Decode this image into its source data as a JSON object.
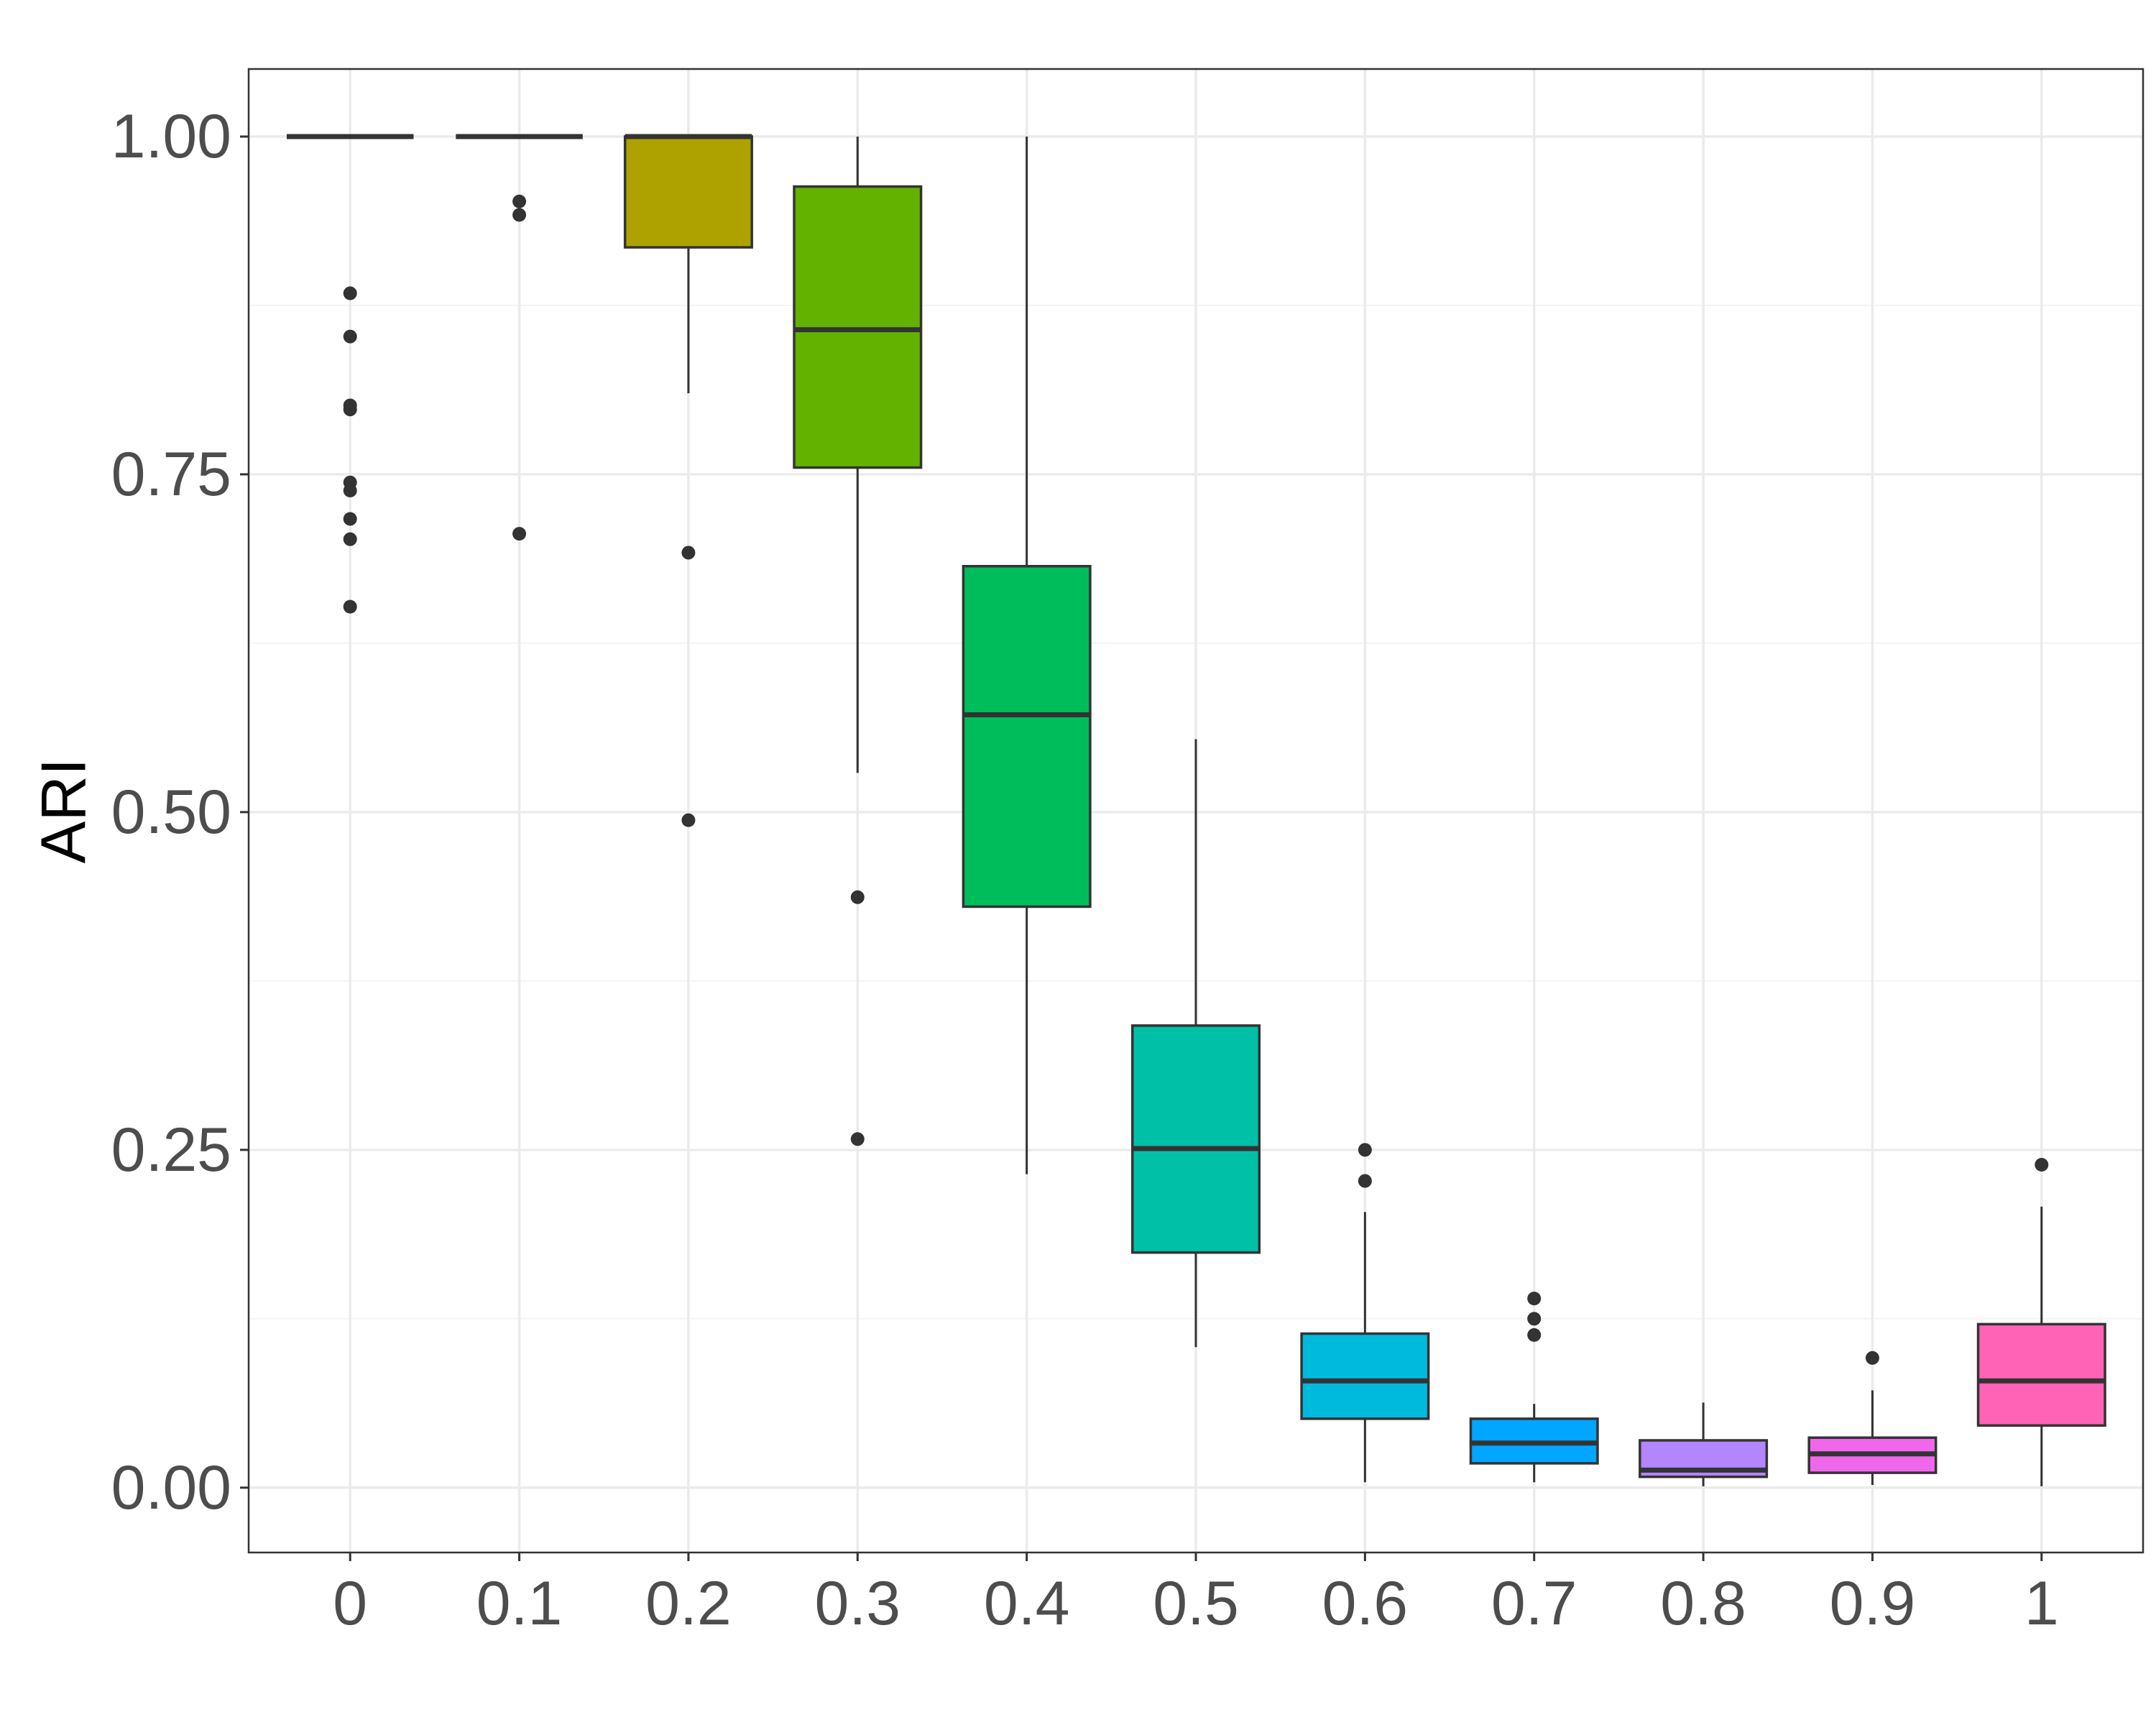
{
  "chart_data": {
    "type": "box",
    "title": "",
    "xlabel": "",
    "ylabel": "ARI",
    "categories": [
      "0",
      "0.1",
      "0.2",
      "0.3",
      "0.4",
      "0.5",
      "0.6",
      "0.7",
      "0.8",
      "0.9",
      "1"
    ],
    "ylim": [
      -0.048,
      1.05
    ],
    "yticks": [
      "0.00",
      "0.25",
      "0.50",
      "0.75",
      "1.00"
    ],
    "ytick_values": [
      0,
      0.25,
      0.5,
      0.75,
      1.0
    ],
    "grid": true,
    "boxes": [
      {
        "category": "0",
        "color": "#F8766D",
        "min": 1.0,
        "q1": 1.0,
        "median": 1.0,
        "q3": 1.0,
        "max": 1.0,
        "outliers": [
          0.884,
          0.852,
          0.801,
          0.798,
          0.744,
          0.738,
          0.717,
          0.702,
          0.652
        ]
      },
      {
        "category": "0.1",
        "color": "#DB8E00",
        "min": 1.0,
        "q1": 1.0,
        "median": 1.0,
        "q3": 1.0,
        "max": 1.0,
        "outliers": [
          0.952,
          0.942,
          0.706
        ]
      },
      {
        "category": "0.2",
        "color": "#AEA200",
        "min": 0.81,
        "q1": 0.918,
        "median": 1.0,
        "q3": 1.0,
        "max": 1.0,
        "outliers": [
          0.692,
          0.494
        ]
      },
      {
        "category": "0.3",
        "color": "#64B200",
        "min": 0.529,
        "q1": 0.755,
        "median": 0.857,
        "q3": 0.963,
        "max": 1.0,
        "outliers": [
          0.437,
          0.258
        ]
      },
      {
        "category": "0.4",
        "color": "#00BD5C",
        "min": 0.232,
        "q1": 0.43,
        "median": 0.572,
        "q3": 0.682,
        "max": 1.0,
        "outliers": []
      },
      {
        "category": "0.5",
        "color": "#00C1A7",
        "min": 0.104,
        "q1": 0.174,
        "median": 0.251,
        "q3": 0.342,
        "max": 0.554,
        "outliers": []
      },
      {
        "category": "0.6",
        "color": "#00BADE",
        "min": 0.004,
        "q1": 0.051,
        "median": 0.079,
        "q3": 0.114,
        "max": 0.204,
        "outliers": [
          0.25,
          0.227
        ]
      },
      {
        "category": "0.7",
        "color": "#00A6FF",
        "min": 0.004,
        "q1": 0.018,
        "median": 0.033,
        "q3": 0.051,
        "max": 0.062,
        "outliers": [
          0.14,
          0.125,
          0.113
        ]
      },
      {
        "category": "0.8",
        "color": "#B385FF",
        "min": 0.001,
        "q1": 0.008,
        "median": 0.013,
        "q3": 0.035,
        "max": 0.063,
        "outliers": []
      },
      {
        "category": "0.9",
        "color": "#EF67EB",
        "min": 0.002,
        "q1": 0.011,
        "median": 0.025,
        "q3": 0.037,
        "max": 0.072,
        "outliers": [
          0.096
        ]
      },
      {
        "category": "1",
        "color": "#FF63B6",
        "min": 0.001,
        "q1": 0.046,
        "median": 0.079,
        "q3": 0.121,
        "max": 0.208,
        "outliers": [
          0.239
        ]
      }
    ]
  },
  "style": {
    "panel_border_color": "#333333",
    "grid_major_color": "#EBEBEB",
    "grid_minor_color": "#F4F4F4",
    "box_stroke_color": "#333333",
    "outlier_color": "#333333"
  }
}
